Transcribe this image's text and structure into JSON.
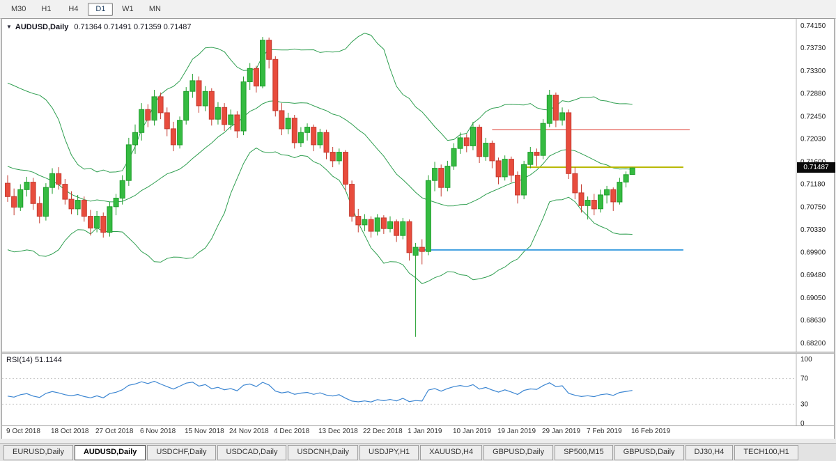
{
  "icons": {
    "collapse_triangle": "▼"
  },
  "colors": {
    "bull_stroke": "#1f9e2c",
    "bull_fill": "#35bb41",
    "bear_stroke": "#c43b30",
    "bear_fill": "#e84c3d",
    "band": "#2e9e4f",
    "rsi_line": "#3c86d2",
    "axis_text": "#1c1c1c",
    "grid_dotted": "#c4c4c4",
    "badge_bg": "#0a0a0a",
    "badge_text": "#ffffff"
  },
  "toolbar": {
    "timeframes": [
      {
        "label": "M30",
        "active": false
      },
      {
        "label": "H1",
        "active": false
      },
      {
        "label": "H4",
        "active": false
      },
      {
        "label": "D1",
        "active": true
      },
      {
        "label": "W1",
        "active": false
      },
      {
        "label": "MN",
        "active": false
      }
    ]
  },
  "chart": {
    "title_symbol": "AUDUSD,Daily",
    "title_ohlc": "0.71364 0.71491 0.71359 0.71487"
  },
  "price_axis": {
    "labels": [
      "0.74150",
      "0.73730",
      "0.73300",
      "0.72880",
      "0.72450",
      "0.72030",
      "0.71600",
      "0.71180",
      "0.70750",
      "0.70330",
      "0.69900",
      "0.69480",
      "0.69050",
      "0.68630",
      "0.68200"
    ]
  },
  "price_badge": {
    "value": "0.71487"
  },
  "rsi_panel": {
    "label": "RSI(14) 51.1144",
    "name": "RSI",
    "period": 14,
    "value": "51.1144",
    "scale": [
      "100",
      "70",
      "30",
      "0"
    ],
    "grid_levels": [
      70,
      30
    ],
    "range": [
      0,
      100
    ]
  },
  "date_axis": [
    {
      "label": "9 Oct 2018",
      "bar": 0
    },
    {
      "label": "18 Oct 2018",
      "bar": 7
    },
    {
      "label": "27 Oct 2018",
      "bar": 14
    },
    {
      "label": "6 Nov 2018",
      "bar": 21
    },
    {
      "label": "15 Nov 2018",
      "bar": 28
    },
    {
      "label": "24 Nov 2018",
      "bar": 35
    },
    {
      "label": "4 Dec 2018",
      "bar": 42
    },
    {
      "label": "13 Dec 2018",
      "bar": 49
    },
    {
      "label": "22 Dec 2018",
      "bar": 56
    },
    {
      "label": "1 Jan 2019",
      "bar": 63
    },
    {
      "label": "10 Jan 2019",
      "bar": 70
    },
    {
      "label": "19 Jan 2019",
      "bar": 77
    },
    {
      "label": "29 Jan 2019",
      "bar": 84
    },
    {
      "label": "7 Feb 2019",
      "bar": 91
    },
    {
      "label": "16 Feb 2019",
      "bar": 98
    }
  ],
  "chart_data": {
    "type": "candlestick",
    "symbol": "AUDUSD",
    "timeframe": "Daily",
    "ohlc_current": {
      "open": 0.71364,
      "high": 0.71491,
      "low": 0.71359,
      "close": 0.71487
    },
    "ylim": [
      0.682,
      0.7415
    ],
    "bollinger": {
      "period": 20,
      "deviation": 2
    },
    "hlines": [
      {
        "price": 0.722,
        "from_bar": 76,
        "to_bar": 107,
        "color": "#e0483e",
        "width": 1.2
      },
      {
        "price": 0.715,
        "from_bar": 81,
        "to_bar": 106,
        "color": "#b7b700",
        "width": 2
      },
      {
        "price": 0.6995,
        "from_bar": 64,
        "to_bar": 106,
        "color": "#3f9fe0",
        "width": 2
      }
    ],
    "warmup_closes": [
      0.718,
      0.721,
      0.7245,
      0.726,
      0.7285,
      0.724,
      0.719,
      0.715,
      0.7095,
      0.701,
      0.706,
      0.712,
      0.7085,
      0.711,
      0.709
    ],
    "candles": [
      [
        0.712,
        0.7135,
        0.7085,
        0.7095
      ],
      [
        0.7095,
        0.711,
        0.706,
        0.7075
      ],
      [
        0.7075,
        0.7118,
        0.7068,
        0.7108
      ],
      [
        0.7108,
        0.7132,
        0.7095,
        0.7122
      ],
      [
        0.7122,
        0.713,
        0.707,
        0.7082
      ],
      [
        0.7082,
        0.7095,
        0.7045,
        0.7058
      ],
      [
        0.7058,
        0.712,
        0.705,
        0.7112
      ],
      [
        0.7112,
        0.7148,
        0.71,
        0.7138
      ],
      [
        0.7138,
        0.715,
        0.7108,
        0.7118
      ],
      [
        0.7118,
        0.7128,
        0.708,
        0.709
      ],
      [
        0.709,
        0.7105,
        0.7062,
        0.7072
      ],
      [
        0.7072,
        0.7098,
        0.706,
        0.7088
      ],
      [
        0.7088,
        0.7095,
        0.7048,
        0.7058
      ],
      [
        0.7058,
        0.707,
        0.7022,
        0.7036
      ],
      [
        0.7036,
        0.7068,
        0.7028,
        0.7058
      ],
      [
        0.7058,
        0.7065,
        0.7018,
        0.7028
      ],
      [
        0.7028,
        0.7085,
        0.702,
        0.7076
      ],
      [
        0.7076,
        0.71,
        0.706,
        0.7092
      ],
      [
        0.7092,
        0.7135,
        0.708,
        0.7125
      ],
      [
        0.7125,
        0.7205,
        0.7115,
        0.7192
      ],
      [
        0.7192,
        0.723,
        0.7175,
        0.7215
      ],
      [
        0.7215,
        0.727,
        0.72,
        0.7258
      ],
      [
        0.7258,
        0.7268,
        0.7225,
        0.7238
      ],
      [
        0.7238,
        0.7295,
        0.7228,
        0.7282
      ],
      [
        0.7282,
        0.729,
        0.724,
        0.7252
      ],
      [
        0.7252,
        0.7262,
        0.7208,
        0.7222
      ],
      [
        0.7222,
        0.7235,
        0.718,
        0.7192
      ],
      [
        0.7192,
        0.7245,
        0.7185,
        0.7238
      ],
      [
        0.7238,
        0.73,
        0.723,
        0.7292
      ],
      [
        0.7292,
        0.7325,
        0.728,
        0.7312
      ],
      [
        0.7312,
        0.732,
        0.7252,
        0.7265
      ],
      [
        0.7265,
        0.7302,
        0.7255,
        0.7292
      ],
      [
        0.7292,
        0.7298,
        0.7228,
        0.724
      ],
      [
        0.724,
        0.7272,
        0.723,
        0.7262
      ],
      [
        0.7262,
        0.727,
        0.7218,
        0.723
      ],
      [
        0.723,
        0.7258,
        0.722,
        0.7248
      ],
      [
        0.7248,
        0.7255,
        0.7205,
        0.7218
      ],
      [
        0.7218,
        0.732,
        0.721,
        0.731
      ],
      [
        0.731,
        0.7345,
        0.7295,
        0.7335
      ],
      [
        0.7335,
        0.734,
        0.729,
        0.7302
      ],
      [
        0.7302,
        0.7394,
        0.7298,
        0.7388
      ],
      [
        0.7388,
        0.7393,
        0.7335,
        0.7352
      ],
      [
        0.7352,
        0.7358,
        0.7245,
        0.7256
      ],
      [
        0.7256,
        0.727,
        0.721,
        0.7222
      ],
      [
        0.7222,
        0.7252,
        0.7212,
        0.7242
      ],
      [
        0.7242,
        0.7248,
        0.7185,
        0.7196
      ],
      [
        0.7196,
        0.7225,
        0.7188,
        0.7215
      ],
      [
        0.7215,
        0.7232,
        0.72,
        0.7225
      ],
      [
        0.7225,
        0.723,
        0.718,
        0.7192
      ],
      [
        0.7192,
        0.7222,
        0.7185,
        0.7215
      ],
      [
        0.7215,
        0.722,
        0.7165,
        0.7178
      ],
      [
        0.7178,
        0.7188,
        0.715,
        0.7162
      ],
      [
        0.7162,
        0.7185,
        0.7155,
        0.7178
      ],
      [
        0.7178,
        0.7182,
        0.7105,
        0.7118
      ],
      [
        0.7118,
        0.7125,
        0.7048,
        0.7058
      ],
      [
        0.7058,
        0.7072,
        0.7028,
        0.7042
      ],
      [
        0.7042,
        0.7062,
        0.703,
        0.7052
      ],
      [
        0.7052,
        0.7058,
        0.7018,
        0.703
      ],
      [
        0.703,
        0.7062,
        0.7022,
        0.7055
      ],
      [
        0.7055,
        0.706,
        0.7025,
        0.7035
      ],
      [
        0.7035,
        0.7058,
        0.7028,
        0.7048
      ],
      [
        0.7048,
        0.7052,
        0.701,
        0.7022
      ],
      [
        0.7022,
        0.7055,
        0.7015,
        0.7048
      ],
      [
        0.7048,
        0.7052,
        0.6975,
        0.699
      ],
      [
        0.6985,
        0.7008,
        0.6832,
        0.7
      ],
      [
        0.7,
        0.7015,
        0.6968,
        0.6992
      ],
      [
        0.6992,
        0.7135,
        0.6985,
        0.7125
      ],
      [
        0.7125,
        0.716,
        0.7105,
        0.7148
      ],
      [
        0.7148,
        0.7155,
        0.7095,
        0.7112
      ],
      [
        0.7112,
        0.7162,
        0.7105,
        0.7152
      ],
      [
        0.7152,
        0.7195,
        0.7145,
        0.7185
      ],
      [
        0.7185,
        0.7215,
        0.7175,
        0.7205
      ],
      [
        0.7205,
        0.7212,
        0.7178,
        0.719
      ],
      [
        0.719,
        0.7235,
        0.7182,
        0.7225
      ],
      [
        0.7225,
        0.723,
        0.7158,
        0.717
      ],
      [
        0.717,
        0.7205,
        0.7162,
        0.7195
      ],
      [
        0.7195,
        0.72,
        0.7148,
        0.7162
      ],
      [
        0.7162,
        0.7168,
        0.7118,
        0.7132
      ],
      [
        0.7132,
        0.7172,
        0.7125,
        0.7165
      ],
      [
        0.7165,
        0.717,
        0.7122,
        0.7135
      ],
      [
        0.7135,
        0.7142,
        0.7082,
        0.7098
      ],
      [
        0.7098,
        0.7162,
        0.709,
        0.7155
      ],
      [
        0.7155,
        0.7188,
        0.7148,
        0.7178
      ],
      [
        0.7178,
        0.7185,
        0.7152,
        0.7172
      ],
      [
        0.7172,
        0.724,
        0.7165,
        0.7232
      ],
      [
        0.7232,
        0.7295,
        0.7225,
        0.7285
      ],
      [
        0.7285,
        0.729,
        0.7225,
        0.7238
      ],
      [
        0.7238,
        0.7262,
        0.7228,
        0.7252
      ],
      [
        0.7252,
        0.7258,
        0.7128,
        0.7138
      ],
      [
        0.7138,
        0.715,
        0.709,
        0.7102
      ],
      [
        0.7102,
        0.7118,
        0.7065,
        0.7078
      ],
      [
        0.7078,
        0.7095,
        0.7052,
        0.7088
      ],
      [
        0.7088,
        0.71,
        0.706,
        0.7072
      ],
      [
        0.7072,
        0.7108,
        0.7065,
        0.7098
      ],
      [
        0.7098,
        0.7115,
        0.7082,
        0.7108
      ],
      [
        0.7108,
        0.7112,
        0.7068,
        0.7085
      ],
      [
        0.7085,
        0.713,
        0.708,
        0.7122
      ],
      [
        0.7122,
        0.7142,
        0.7112,
        0.7136
      ],
      [
        0.71364,
        0.71491,
        0.71359,
        0.71487
      ]
    ]
  },
  "tabs": [
    {
      "label": "EURUSD,Daily",
      "active": false
    },
    {
      "label": "AUDUSD,Daily",
      "active": true
    },
    {
      "label": "USDCHF,Daily",
      "active": false
    },
    {
      "label": "USDCAD,Daily",
      "active": false
    },
    {
      "label": "USDCNH,Daily",
      "active": false
    },
    {
      "label": "USDJPY,H1",
      "active": false
    },
    {
      "label": "XAUUSD,H4",
      "active": false
    },
    {
      "label": "GBPUSD,Daily",
      "active": false
    },
    {
      "label": "SP500,M15",
      "active": false
    },
    {
      "label": "GBPUSD,Daily",
      "active": false
    },
    {
      "label": "DJ30,H4",
      "active": false
    },
    {
      "label": "TECH100,H1",
      "active": false
    }
  ]
}
